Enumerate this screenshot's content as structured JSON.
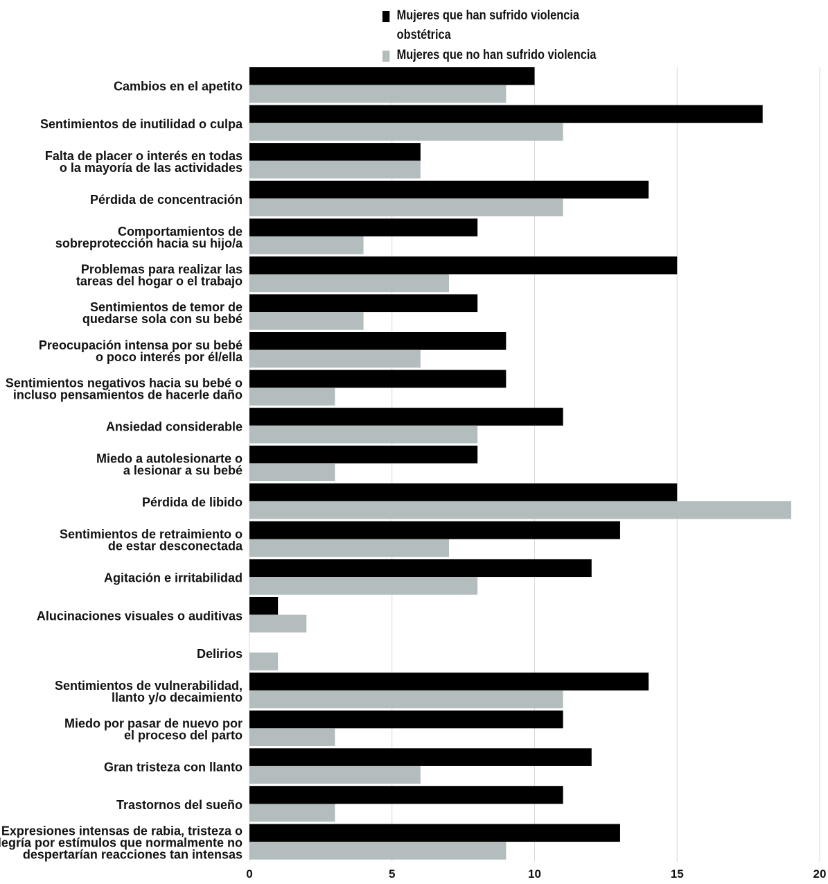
{
  "legend": {
    "series_0_label": "Mujeres que han sufrido violencia obstétrica",
    "series_1_label": "Mujeres que no han sufrido violencia obstétrica"
  },
  "colors": {
    "series_0": "#000000",
    "series_1": "#b3bdbd",
    "grid": "#d9d9d9"
  },
  "chart_data": {
    "type": "bar",
    "orientation": "horizontal",
    "title": "",
    "xlabel": "",
    "ylabel": "",
    "xlim": [
      0,
      20
    ],
    "xticks": [
      0,
      5,
      10,
      15,
      20
    ],
    "grid": "vertical",
    "legend_position": "top",
    "categories": [
      [
        "Cambios en el apetito"
      ],
      [
        "Sentimientos de inutilidad o culpa"
      ],
      [
        "Falta de placer o interés en todas",
        "o la mayoría de las actividades"
      ],
      [
        "Pérdida de concentración"
      ],
      [
        "Comportamientos de",
        "sobreprotección hacia su hijo/a"
      ],
      [
        "Problemas para realizar las",
        "tareas del hogar o el trabajo"
      ],
      [
        "Sentimientos de temor de",
        "quedarse sola con su bebé"
      ],
      [
        "Preocupación intensa por su bebé",
        "o poco interés por él/ella"
      ],
      [
        "Sentimientos negativos hacia su bebé o",
        "incluso pensamientos de hacerle daño"
      ],
      [
        "Ansiedad considerable"
      ],
      [
        "Miedo a autolesionarte o",
        "a lesionar a su bebé"
      ],
      [
        "Pérdida de libido"
      ],
      [
        "Sentimientos de retraimiento o",
        "de estar desconectada"
      ],
      [
        "Agitación e irritabilidad"
      ],
      [
        "Alucinaciones visuales o auditivas"
      ],
      [
        "Delirios"
      ],
      [
        "Sentimientos de vulnerabilidad,",
        "llanto y/o decaimiento"
      ],
      [
        "Miedo por pasar de nuevo por",
        "el proceso del parto"
      ],
      [
        "Gran tristeza con llanto"
      ],
      [
        "Trastornos del sueño"
      ],
      [
        "Expresiones intensas de rabia, tristeza o",
        "alegría por estímulos que normalmente no",
        "despertarían reacciones tan intensas"
      ]
    ],
    "series": [
      {
        "name": "Mujeres que han sufrido violencia obstétrica",
        "values": [
          10,
          18,
          6,
          14,
          8,
          15,
          8,
          9,
          9,
          11,
          8,
          15,
          13,
          12,
          1,
          0,
          14,
          11,
          12,
          11,
          13
        ]
      },
      {
        "name": "Mujeres que no han sufrido violencia obstétrica",
        "values": [
          9,
          11,
          6,
          11,
          4,
          7,
          4,
          6,
          3,
          8,
          3,
          19,
          7,
          8,
          2,
          1,
          11,
          3,
          6,
          3,
          9
        ]
      }
    ]
  }
}
